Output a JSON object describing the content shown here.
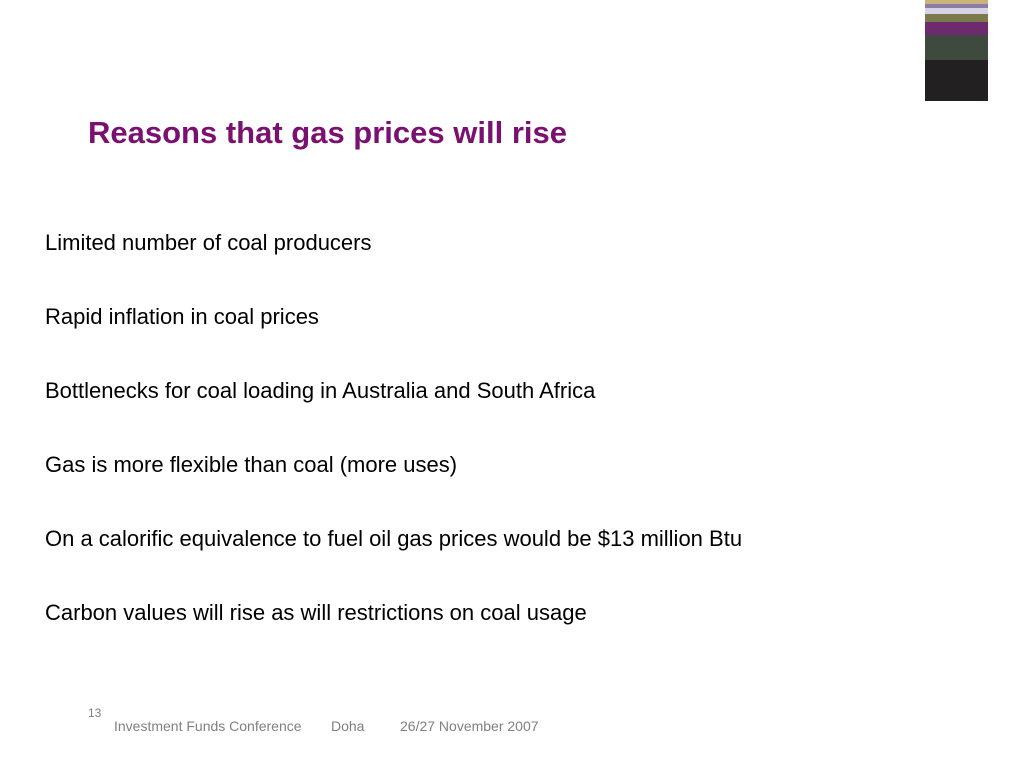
{
  "slide": {
    "title": "Reasons that gas prices will rise",
    "title_color": "#7a1070",
    "bullets": [
      "Limited number of coal producers",
      "Rapid inflation in coal prices",
      "Bottlenecks for coal loading in Australia and South Africa",
      "Gas is more flexible than coal (more uses)",
      "On a calorific equivalence to fuel oil gas prices would be $13 million Btu",
      "Carbon values will rise as will restrictions on coal usage"
    ]
  },
  "footer": {
    "page_number": "13",
    "event": "Investment Funds Conference",
    "location": "Doha",
    "date": "26/27 November 2007"
  },
  "decoration": {
    "stripe_colors": [
      "#c9b37a",
      "#8a7da8",
      "#d8d2e6",
      "#7b7a4a",
      "#6e2a6e",
      "#3e4a3e",
      "#232021"
    ]
  }
}
